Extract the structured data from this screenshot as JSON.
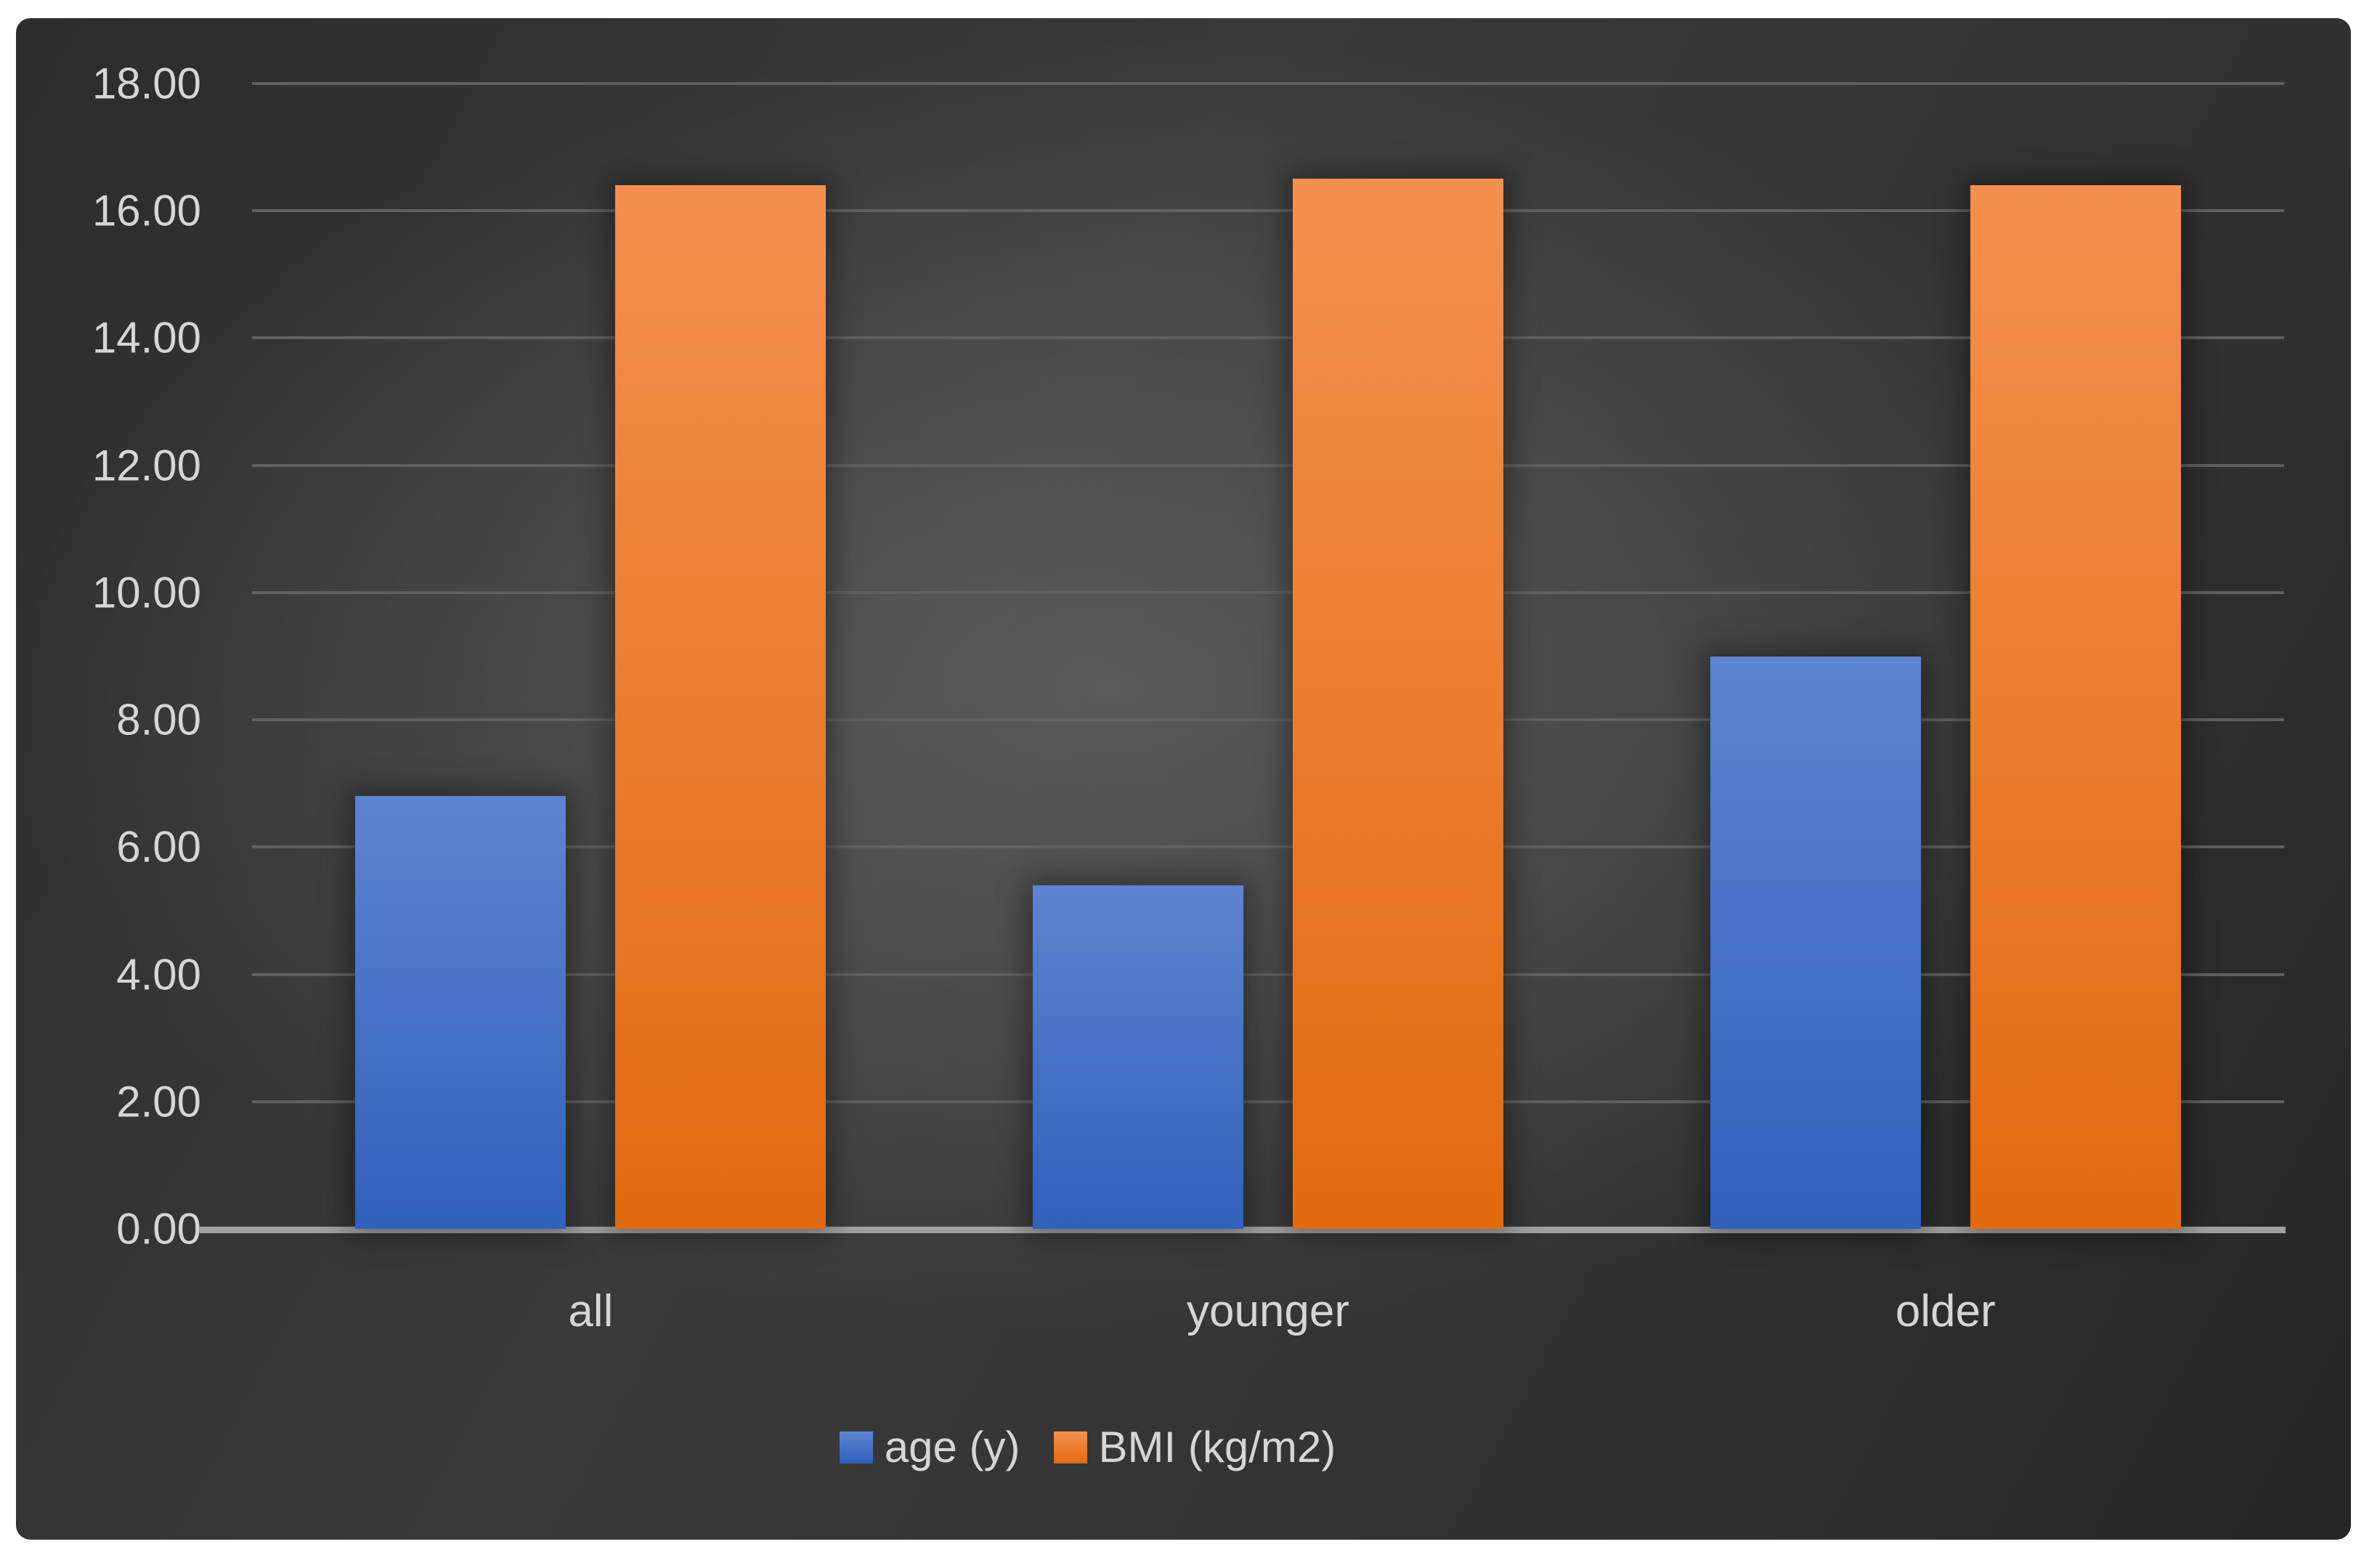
{
  "chart_data": {
    "type": "bar",
    "title": "",
    "xlabel": "",
    "ylabel": "",
    "categories": [
      "all",
      "younger",
      "older"
    ],
    "series": [
      {
        "name": "age (y)",
        "values": [
          6.8,
          5.4,
          9.0
        ],
        "color_top": "#5d84d0",
        "color_bottom": "#3160bd"
      },
      {
        "name": "BMI (kg/m2)",
        "values": [
          16.4,
          16.5,
          16.4
        ],
        "color_top": "#f4904f",
        "color_bottom": "#e26a10"
      }
    ],
    "ylim": [
      0,
      18
    ],
    "y_ticks": [
      "0.00",
      "2.00",
      "4.00",
      "6.00",
      "8.00",
      "10.00",
      "12.00",
      "14.00",
      "16.00",
      "18.00"
    ],
    "grid": true,
    "legend_position": "bottom",
    "colors": {
      "page_background": "#ffffff",
      "canvas_center": "#525252",
      "canvas_edge": "#262626",
      "gridline": "#606060",
      "axis_line": "#a0a0a0",
      "text": "#d6d6d6"
    }
  }
}
